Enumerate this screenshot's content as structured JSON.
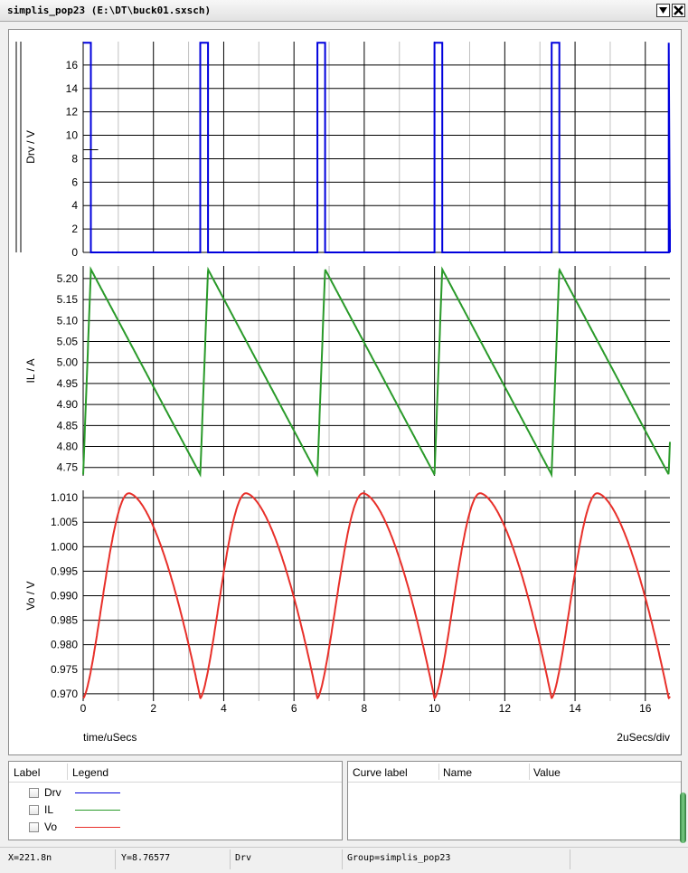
{
  "window": {
    "title": "simplis_pop23 (E:\\DT\\buck01.sxsch)"
  },
  "chart_data": {
    "type": "line",
    "x_axis": {
      "label": "time/uSecs",
      "units_per_div": "2uSecs/div",
      "range": [
        0,
        16.7
      ],
      "ticks": [
        0,
        2,
        4,
        6,
        8,
        10,
        12,
        14,
        16
      ],
      "tick_labels": [
        "0",
        "2",
        "4",
        "6",
        "8",
        "10",
        "12",
        "14",
        "16"
      ]
    },
    "period_us": 3.333,
    "plots": [
      {
        "name": "Drv",
        "ylabel": "Drv / V",
        "color": "#0000dd",
        "ylim": [
          0,
          18
        ],
        "ticks": [
          0,
          2,
          4,
          6,
          8,
          10,
          12,
          14,
          16
        ],
        "tick_labels": [
          "0",
          "2",
          "4",
          "6",
          "8",
          "10",
          "12",
          "14",
          "16"
        ],
        "series": [
          {
            "name": "Drv",
            "pulse_high": 17.9,
            "pulse_low": 0,
            "pulse_starts": [
              0,
              3.333,
              6.667,
              10.0,
              13.333,
              16.667
            ],
            "pulse_width": 0.22
          }
        ]
      },
      {
        "name": "IL",
        "ylabel": "IL / A",
        "color": "#2a9a2a",
        "ylim": [
          4.73,
          5.23
        ],
        "ticks": [
          4.75,
          4.8,
          4.85,
          4.9,
          4.95,
          5.0,
          5.05,
          5.1,
          5.15,
          5.2
        ],
        "tick_labels": [
          "4.75",
          "4.80",
          "4.85",
          "4.90",
          "4.95",
          "5.00",
          "5.05",
          "5.10",
          "5.15",
          "5.20"
        ],
        "series": [
          {
            "name": "IL",
            "min": 4.733,
            "max": 5.222,
            "rise_time": 0.22
          }
        ]
      },
      {
        "name": "Vo",
        "ylabel": "Vo / V",
        "color": "#e8302a",
        "ylim": [
          0.9685,
          1.0115
        ],
        "ticks": [
          0.97,
          0.975,
          0.98,
          0.985,
          0.99,
          0.995,
          1.0,
          1.005,
          1.01
        ],
        "tick_labels": [
          "0.970",
          "0.975",
          "0.980",
          "0.985",
          "0.990",
          "0.995",
          "1.000",
          "1.005",
          "1.010"
        ],
        "series": [
          {
            "name": "Vo",
            "min": 0.9691,
            "max": 1.0109,
            "peak_time_in_period": 1.3
          }
        ]
      }
    ]
  },
  "legend": {
    "col_label": "Label",
    "col_legend": "Legend",
    "items": [
      {
        "label": "Drv",
        "color": "#0000dd"
      },
      {
        "label": "IL",
        "color": "#2a9a2a"
      },
      {
        "label": "Vo",
        "color": "#e8302a"
      }
    ]
  },
  "curve_table": {
    "col_curve": "Curve label",
    "col_name": "Name",
    "col_value": "Value"
  },
  "status": {
    "x": "X=221.8n",
    "y": "Y=8.76577",
    "curve": "Drv",
    "group": "Group=simplis_pop23"
  }
}
